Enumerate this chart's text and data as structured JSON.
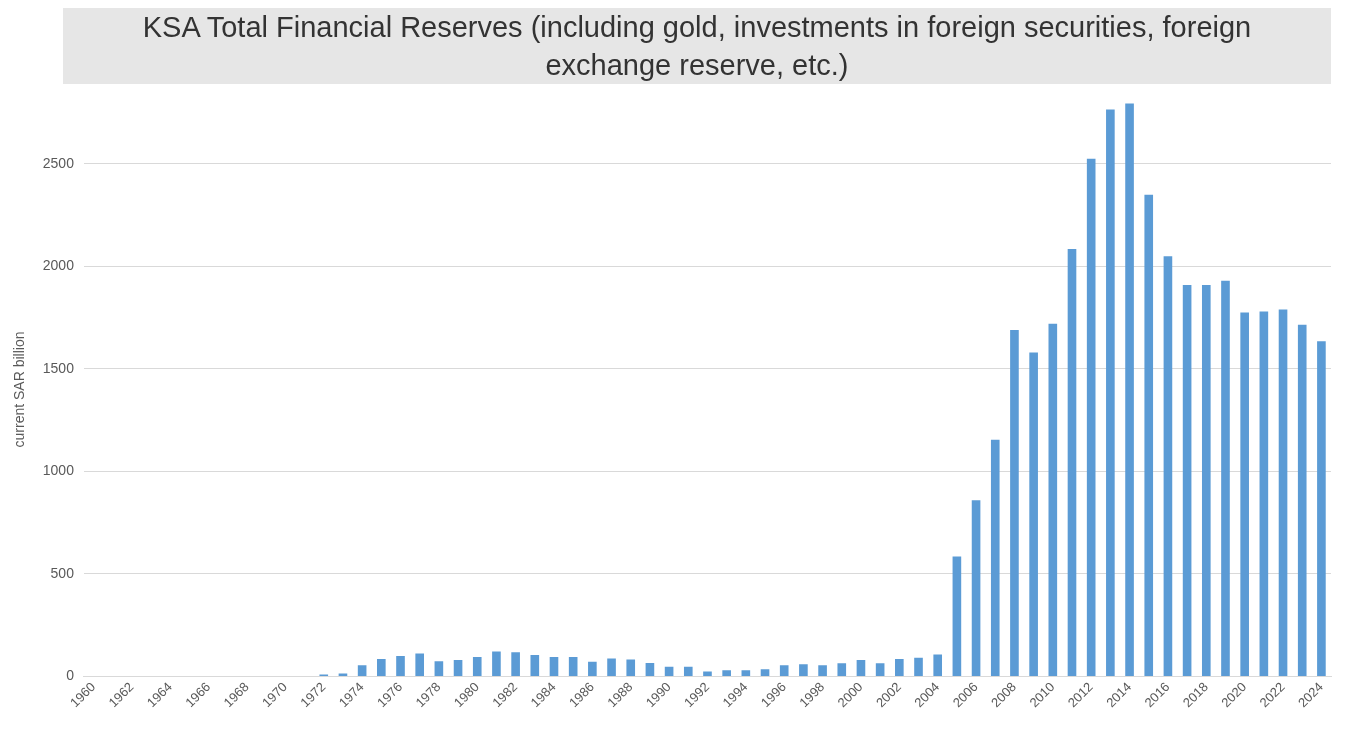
{
  "chart_data": {
    "type": "bar",
    "title": "KSA Total Financial Reserves (including gold, investments in foreign securities, foreign exchange reserve, etc.)",
    "ylabel": "current SAR billion",
    "categories": [
      "1960",
      null,
      "1962",
      null,
      "1964",
      null,
      "1966",
      null,
      "1968",
      null,
      "1970",
      null,
      "1972",
      null,
      "1974",
      null,
      "1976",
      null,
      "1978",
      null,
      "1980",
      null,
      "1982",
      null,
      "1984",
      null,
      "1986",
      null,
      "1988",
      null,
      "1990",
      null,
      "1992",
      null,
      "1994",
      null,
      "1996",
      null,
      "1998",
      null,
      "2000",
      null,
      "2002",
      null,
      "2004",
      null,
      "2006",
      null,
      "2008",
      null,
      "2010",
      null,
      "2012",
      null,
      "2014",
      null,
      "2016",
      null,
      "2018",
      null,
      "2020",
      null,
      "2022",
      null,
      "2024"
    ],
    "values": [
      0,
      0,
      0,
      0,
      0,
      0,
      0,
      0,
      0,
      0,
      0,
      0,
      10,
      15,
      55,
      85,
      100,
      112,
      75,
      80,
      95,
      122,
      118,
      105,
      95,
      95,
      72,
      88,
      83,
      66,
      48,
      48,
      25,
      30,
      30,
      36,
      55,
      60,
      55,
      65,
      80,
      65,
      85,
      92,
      108,
      585,
      860,
      1155,
      1690,
      1580,
      1720,
      2085,
      2525,
      2765,
      2795,
      2350,
      2050,
      1910,
      1910,
      1930,
      1775,
      1780,
      1790,
      1715,
      1635
    ],
    "color": "#5b9bd5",
    "ylim": [
      0,
      2800
    ],
    "yticks": [
      0,
      500,
      1000,
      1500,
      2000,
      2500
    ],
    "grid": "y",
    "legend": false
  }
}
